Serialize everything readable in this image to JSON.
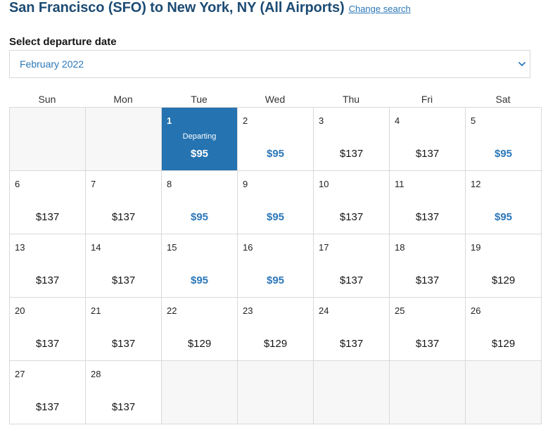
{
  "header": {
    "title": "San Francisco (SFO) to New York, NY (All Airports)",
    "change_link": "Change search"
  },
  "date_picker": {
    "label": "Select departure date",
    "selected_month": "February 2022",
    "chevron_icon": "chevron-down-icon"
  },
  "calendar": {
    "weekdays": [
      "Sun",
      "Mon",
      "Tue",
      "Wed",
      "Thu",
      "Fri",
      "Sat"
    ],
    "selected_tag": "Departing",
    "low_fare_color": "#2b77b8",
    "selected_color": "#2573b1",
    "leading_blanks": 2,
    "trailing_blanks": 5,
    "days": [
      {
        "day": "1",
        "price": "$95",
        "low": true,
        "selected": true
      },
      {
        "day": "2",
        "price": "$95",
        "low": true
      },
      {
        "day": "3",
        "price": "$137",
        "low": false
      },
      {
        "day": "4",
        "price": "$137",
        "low": false
      },
      {
        "day": "5",
        "price": "$95",
        "low": true
      },
      {
        "day": "6",
        "price": "$137",
        "low": false
      },
      {
        "day": "7",
        "price": "$137",
        "low": false
      },
      {
        "day": "8",
        "price": "$95",
        "low": true
      },
      {
        "day": "9",
        "price": "$95",
        "low": true
      },
      {
        "day": "10",
        "price": "$137",
        "low": false
      },
      {
        "day": "11",
        "price": "$137",
        "low": false
      },
      {
        "day": "12",
        "price": "$95",
        "low": true
      },
      {
        "day": "13",
        "price": "$137",
        "low": false
      },
      {
        "day": "14",
        "price": "$137",
        "low": false
      },
      {
        "day": "15",
        "price": "$95",
        "low": true
      },
      {
        "day": "16",
        "price": "$95",
        "low": true
      },
      {
        "day": "17",
        "price": "$137",
        "low": false
      },
      {
        "day": "18",
        "price": "$137",
        "low": false
      },
      {
        "day": "19",
        "price": "$129",
        "low": false
      },
      {
        "day": "20",
        "price": "$137",
        "low": false
      },
      {
        "day": "21",
        "price": "$137",
        "low": false
      },
      {
        "day": "22",
        "price": "$129",
        "low": false
      },
      {
        "day": "23",
        "price": "$129",
        "low": false
      },
      {
        "day": "24",
        "price": "$137",
        "low": false
      },
      {
        "day": "25",
        "price": "$137",
        "low": false
      },
      {
        "day": "26",
        "price": "$129",
        "low": false
      },
      {
        "day": "27",
        "price": "$137",
        "low": false
      },
      {
        "day": "28",
        "price": "$137",
        "low": false
      }
    ]
  }
}
